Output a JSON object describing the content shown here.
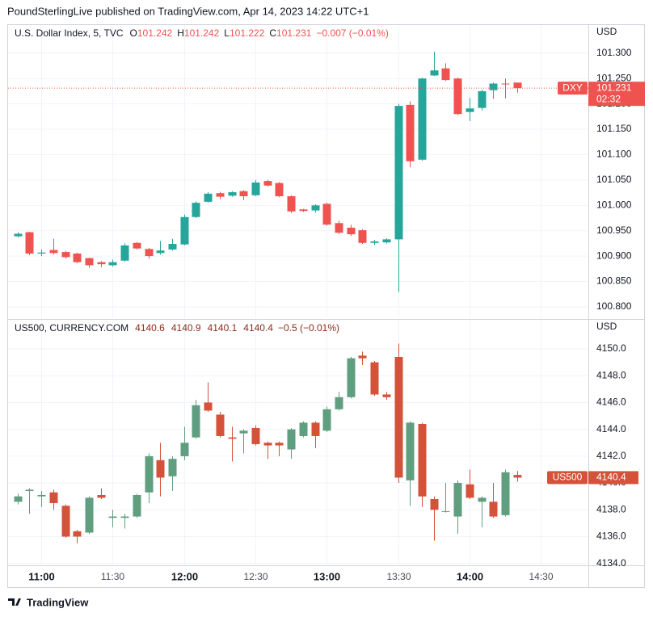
{
  "header": {
    "text": "PoundSterlingLive published on TradingView.com, Apr 14, 2023 14:22 UTC+1"
  },
  "footer": {
    "logo": "TradingView"
  },
  "chart_data": [
    {
      "type": "candlestick",
      "title": "U.S. Dollar Index, 5, TVC",
      "ohlc_letters": [
        "O",
        "H",
        "L",
        "C"
      ],
      "change": "−0.007 (−0.01%)",
      "unit": "USD",
      "countdown": "02:32",
      "legend_color": "#ef5350",
      "colors": {
        "up": "#26a69a",
        "down": "#ef5350"
      },
      "grid": true,
      "x": [
        "10:50",
        "10:55",
        "11:00",
        "11:05",
        "11:10",
        "11:15",
        "11:20",
        "11:25",
        "11:30",
        "11:35",
        "11:40",
        "11:45",
        "11:50",
        "11:55",
        "12:00",
        "12:05",
        "12:10",
        "12:15",
        "12:20",
        "12:25",
        "12:30",
        "12:35",
        "12:40",
        "12:45",
        "12:50",
        "12:55",
        "13:00",
        "13:05",
        "13:10",
        "13:15",
        "13:20",
        "13:25",
        "13:30",
        "13:35",
        "13:40",
        "13:45",
        "13:50",
        "13:55",
        "14:00",
        "14:05",
        "14:10",
        "14:15",
        "14:20"
      ],
      "xlim": [
        "10:46",
        "14:50"
      ],
      "ylim": [
        100.776,
        101.357
      ],
      "yticks": [
        {
          "value": 100.8,
          "label": "100.800"
        },
        {
          "value": 100.85,
          "label": "100.850"
        },
        {
          "value": 100.9,
          "label": "100.900"
        },
        {
          "value": 100.95,
          "label": "100.950"
        },
        {
          "value": 101.0,
          "label": "101.000"
        },
        {
          "value": 101.05,
          "label": "101.050"
        },
        {
          "value": 101.1,
          "label": "101.100"
        },
        {
          "value": 101.15,
          "label": "101.150"
        },
        {
          "value": 101.2,
          "label": "101.200"
        },
        {
          "value": 101.25,
          "label": "101.250"
        },
        {
          "value": 101.3,
          "label": "101.300"
        }
      ],
      "series": [
        {
          "name": "DXY",
          "open": [
            100.939,
            100.947,
            100.905,
            100.912,
            100.908,
            100.905,
            100.896,
            100.888,
            100.882,
            100.891,
            100.926,
            100.914,
            100.906,
            100.913,
            100.923,
            100.977,
            101.007,
            101.024,
            101.019,
            101.028,
            101.02,
            101.048,
            101.044,
            101.018,
            100.992,
            100.99,
            101.003,
            100.965,
            100.956,
            100.951,
            100.926,
            100.927,
            100.933,
            101.198,
            101.09,
            101.256,
            101.27,
            101.25,
            101.184,
            101.192,
            101.227,
            101.24,
            101.242
          ],
          "high": [
            100.947,
            100.948,
            100.913,
            100.934,
            100.91,
            100.907,
            100.897,
            100.89,
            100.893,
            100.925,
            100.928,
            100.916,
            100.93,
            100.934,
            100.982,
            101.008,
            101.026,
            101.027,
            101.028,
            101.03,
            101.05,
            101.05,
            101.046,
            101.02,
            100.993,
            101.002,
            101.005,
            100.97,
            100.962,
            100.953,
            100.932,
            100.935,
            101.2,
            101.205,
            101.252,
            101.303,
            101.28,
            101.252,
            101.212,
            101.228,
            101.242,
            101.25,
            101.242
          ],
          "low": [
            100.937,
            100.902,
            100.9,
            100.903,
            100.895,
            100.886,
            100.877,
            100.878,
            100.879,
            100.889,
            100.913,
            100.895,
            100.903,
            100.911,
            100.921,
            100.975,
            101.005,
            101.012,
            101.017,
            101.01,
            101.018,
            101.037,
            101.016,
            100.985,
            100.987,
            100.986,
            100.96,
            100.944,
            100.94,
            100.924,
            100.922,
            100.925,
            100.829,
            101.075,
            101.088,
            101.255,
            101.245,
            101.178,
            101.166,
            101.187,
            101.21,
            101.211,
            101.222
          ],
          "close": [
            100.944,
            100.905,
            100.907,
            100.906,
            100.898,
            100.888,
            100.882,
            100.884,
            100.888,
            100.921,
            100.915,
            100.9,
            100.911,
            100.924,
            100.977,
            101.005,
            101.023,
            101.017,
            101.026,
            101.018,
            101.045,
            101.039,
            101.018,
            100.988,
            100.989,
            101.0,
            100.962,
            100.946,
            100.943,
            100.926,
            100.929,
            100.933,
            101.196,
            101.087,
            101.25,
            101.266,
            101.247,
            101.18,
            101.191,
            101.225,
            101.24,
            101.239,
            101.231
          ]
        }
      ]
    },
    {
      "type": "candlestick",
      "title": "US500, CURRENCY.COM",
      "change": "−0.5 (−0.01%)",
      "unit": "USD",
      "legend_color": "#8c2b1c",
      "colors": {
        "up": "#5f9e7f",
        "down": "#d4513a"
      },
      "grid": true,
      "x": [
        "10:50",
        "10:55",
        "11:00",
        "11:05",
        "11:10",
        "11:15",
        "11:20",
        "11:25",
        "11:30",
        "11:35",
        "11:40",
        "11:45",
        "11:50",
        "11:55",
        "12:00",
        "12:05",
        "12:10",
        "12:15",
        "12:20",
        "12:25",
        "12:30",
        "12:35",
        "12:40",
        "12:45",
        "12:50",
        "12:55",
        "13:00",
        "13:05",
        "13:10",
        "13:15",
        "13:20",
        "13:25",
        "13:30",
        "13:35",
        "13:40",
        "13:45",
        "13:50",
        "13:55",
        "14:00",
        "14:05",
        "14:10",
        "14:15",
        "14:20"
      ],
      "xlim": [
        "10:46",
        "14:50"
      ],
      "xticks": [
        "11:00",
        "11:30",
        "12:00",
        "12:30",
        "13:00",
        "13:30",
        "14:00",
        "14:30"
      ],
      "ylim": [
        4133.86,
        4152.23
      ],
      "yticks": [
        {
          "value": 4134,
          "label": "4134.0"
        },
        {
          "value": 4136,
          "label": "4136.0"
        },
        {
          "value": 4138,
          "label": "4138.0"
        },
        {
          "value": 4140,
          "label": "4140.0"
        },
        {
          "value": 4142,
          "label": "4142.0"
        },
        {
          "value": 4144,
          "label": "4144.0"
        },
        {
          "value": 4146,
          "label": "4146.0"
        },
        {
          "value": 4148,
          "label": "4148.0"
        },
        {
          "value": 4150,
          "label": "4150.0"
        }
      ],
      "series": [
        {
          "name": "US500",
          "open": [
            4138.6,
            4139.4,
            4139.0,
            4139.3,
            4138.3,
            4136.4,
            4136.3,
            4139.1,
            4137.4,
            4137.4,
            4137.5,
            4139.3,
            4141.7,
            4140.5,
            4142.0,
            4143.4,
            4146.0,
            4145.1,
            4143.4,
            4143.7,
            4144.1,
            4143.0,
            4143.0,
            4142.5,
            4143.5,
            4144.5,
            4143.9,
            4145.5,
            4146.4,
            4149.5,
            4149.0,
            4146.6,
            4149.4,
            4140.2,
            4144.4,
            4138.8,
            4137.9,
            4137.5,
            4139.9,
            4138.6,
            4138.6,
            4137.6,
            4140.6
          ],
          "high": [
            4139.2,
            4139.6,
            4139.4,
            4139.5,
            4138.4,
            4136.5,
            4139.0,
            4139.6,
            4138.0,
            4137.7,
            4139.2,
            4142.2,
            4143.0,
            4142.0,
            4144.2,
            4146.2,
            4147.5,
            4145.3,
            4144.2,
            4144.0,
            4144.3,
            4143.1,
            4143.1,
            4144.1,
            4144.6,
            4144.6,
            4145.7,
            4146.8,
            4149.4,
            4149.8,
            4149.1,
            4146.8,
            4150.4,
            4144.6,
            4144.5,
            4139.0,
            4140.0,
            4140.2,
            4141.0,
            4139.0,
            4140.0,
            4141.0,
            4140.9
          ],
          "low": [
            4138.4,
            4137.7,
            4138.2,
            4138.0,
            4135.9,
            4135.5,
            4136.2,
            4138.8,
            4136.7,
            4136.6,
            4137.4,
            4138.5,
            4139.0,
            4139.4,
            4141.7,
            4143.3,
            4145.3,
            4143.4,
            4141.6,
            4142.2,
            4142.8,
            4141.8,
            4142.0,
            4141.8,
            4143.4,
            4142.6,
            4143.8,
            4145.4,
            4146.3,
            4148.8,
            4146.5,
            4146.2,
            4140.0,
            4138.3,
            4138.2,
            4135.7,
            4137.8,
            4136.2,
            4138.8,
            4136.7,
            4137.4,
            4137.5,
            4140.1
          ],
          "close": [
            4139.0,
            4139.5,
            4139.1,
            4138.5,
            4136.0,
            4136.0,
            4138.9,
            4138.9,
            4137.5,
            4137.5,
            4139.1,
            4142.0,
            4140.4,
            4141.8,
            4143.0,
            4145.8,
            4145.4,
            4143.5,
            4143.3,
            4143.9,
            4142.9,
            4142.8,
            4142.8,
            4144.0,
            4144.5,
            4143.5,
            4145.5,
            4146.4,
            4149.3,
            4149.3,
            4146.6,
            4146.4,
            4140.4,
            4144.5,
            4139.0,
            4138.0,
            4137.9,
            4140.0,
            4138.9,
            4138.9,
            4137.5,
            4140.8,
            4140.4
          ]
        }
      ]
    }
  ]
}
